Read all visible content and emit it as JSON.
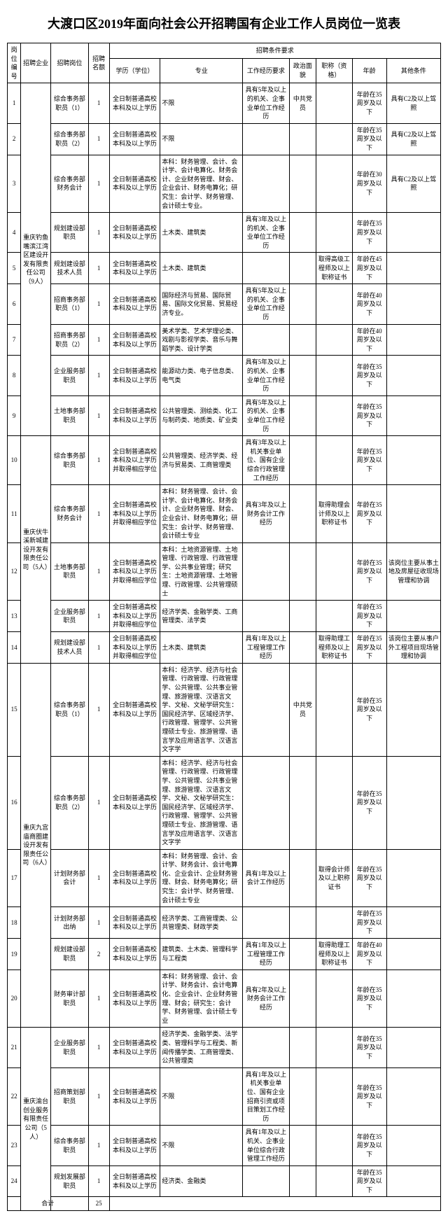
{
  "title": "大渡口区2019年面向社会公开招聘国有企业工作人员岗位一览表",
  "headers": {
    "idx": "岗位编号",
    "enterprise": "招聘企业",
    "position": "招聘岗位",
    "count": "招聘名额",
    "requirements": "招聘条件要求",
    "education": "学历（学位）",
    "major": "专业",
    "experience": "工作经历要求",
    "political": "政治面貌",
    "qualification": "职称（资格）",
    "age": "年龄",
    "other": "其他条件"
  },
  "enterprises": {
    "e1": "重庆钓鱼嘴滨江湾区建设开发有限责任公司（9人）",
    "e2": "重庆伏牛溪新城建设开发有限责任公司（5人）",
    "e3": "重庆九宫庙商圈建设开发有限责任公司（6人）",
    "e4": "重庆渝台创业服务有限责任公司（5人）"
  },
  "rows": [
    {
      "idx": "1",
      "pos": "综合事务部职员（1）",
      "num": "1",
      "edu": "全日制普通高校本科及以上学历",
      "maj": "不限",
      "exp": "具有5年及以上的机关、企事业单位工作经历",
      "pol": "中共党员",
      "qual": "",
      "age": "年龄在35周岁及以下",
      "oth": "具有C2及以上驾照"
    },
    {
      "idx": "2",
      "pos": "综合事务部职员（2）",
      "num": "1",
      "edu": "全日制普通高校本科及以上学历",
      "maj": "不限",
      "exp": "",
      "pol": "",
      "qual": "",
      "age": "年龄在35周岁及以下",
      "oth": "具有C2及以上驾照"
    },
    {
      "idx": "3",
      "pos": "综合事务部财务会计",
      "num": "1",
      "edu": "全日制普通高校本科及以上学历",
      "maj": "本科：财务管理、会计、会计学、会计电算化、财务会计、企业财务管理、财会、企业会计、财务电算化；研究生：会计学、财务管理、会计硕士专业。",
      "exp": "",
      "pol": "",
      "qual": "",
      "age": "年龄在30周岁及以下",
      "oth": "具有C2及以上驾照"
    },
    {
      "idx": "4",
      "pos": "规划建设部职员",
      "num": "1",
      "edu": "全日制普通高校本科及以上学历",
      "maj": "土木类、建筑类",
      "exp": "具有3年及以上的机关、企事业单位工作经历",
      "pol": "",
      "qual": "",
      "age": "年龄在35周岁及以下",
      "oth": ""
    },
    {
      "idx": "5",
      "pos": "规划建设部技术人员",
      "num": "1",
      "edu": "全日制普通高校本科及以上学历",
      "maj": "土木类、建筑类",
      "exp": "",
      "pol": "",
      "qual": "取得高级工程师及以上职称证书",
      "age": "年龄在45周岁及以下",
      "oth": ""
    },
    {
      "idx": "6",
      "pos": "招商事务部职员（1）",
      "num": "1",
      "edu": "全日制普通高校本科及以上学历",
      "maj": "国际经济与贸易、国际贸易、国际文化贸易、贸易经济专业。",
      "exp": "具有5年及以上的机关、企事业单位工作经历",
      "pol": "",
      "qual": "",
      "age": "年龄在40周岁及以下",
      "oth": ""
    },
    {
      "idx": "7",
      "pos": "招商事务部职员（2）",
      "num": "1",
      "edu": "全日制普通高校本科及以上学历",
      "maj": "美术学类、艺术学理论类、戏剧与影视学类、音乐与舞蹈学类、设计学类",
      "exp": "",
      "pol": "",
      "qual": "",
      "age": "年龄在40周岁及以下",
      "oth": ""
    },
    {
      "idx": "8",
      "pos": "企业服务部职员",
      "num": "1",
      "edu": "全日制普通高校本科及以上学历",
      "maj": "能源动力类、电子信息类、电气类",
      "exp": "具有5年及以上的机关、企事业单位工作经历",
      "pol": "",
      "qual": "",
      "age": "年龄在35周岁及以下",
      "oth": ""
    },
    {
      "idx": "9",
      "pos": "土地事务部职员",
      "num": "1",
      "edu": "全日制普通高校本科及以上学历",
      "maj": "公共管理类、测绘类、化工与制药类、地质类、矿业类",
      "exp": "具有5年及以上的机关、企事业单位工作经历",
      "pol": "",
      "qual": "",
      "age": "年龄在35周岁及以下",
      "oth": ""
    },
    {
      "idx": "10",
      "pos": "综合事务部职员",
      "num": "1",
      "edu": "全日制普通高校本科及以上学历并取得相应学位",
      "maj": "公共管理类、经济学类、经济与贸易类、工商管理类",
      "exp": "具有3年及以上机关事业单位、国有企业综合行政管理工作经历",
      "pol": "",
      "qual": "",
      "age": "年龄在35周岁及以下",
      "oth": ""
    },
    {
      "idx": "11",
      "pos": "综合事务部财务会计",
      "num": "1",
      "edu": "全日制普通高校本科及以上学历并取得相应学位",
      "maj": "本科：财务管理、会计、会计学、会计电算化、财务会计、企业财务管理、财会、企业会计、财务电算化；研究生：会计学、财务管理、会计硕士专业",
      "exp": "具有3年及以上财务会计工作经历",
      "pol": "",
      "qual": "取得助理会计师及以上职称证书",
      "age": "年龄在35周岁及以下",
      "oth": ""
    },
    {
      "idx": "12",
      "pos": "土地事务部职员",
      "num": "1",
      "edu": "全日制普通高校本科及以上学历并取得相应学位",
      "maj": "本科：土地资源管理、土地管理、行政管理、行政管理学、公共事业管理；研究生：土地资源管理、土地管理、行政管理、公共管理硕士",
      "exp": "",
      "pol": "",
      "qual": "",
      "age": "年龄在35周岁及以下",
      "oth": "该岗位主要从事土地及房屋征收现场管理和协调"
    },
    {
      "idx": "13",
      "pos": "企业服务部职员",
      "num": "1",
      "edu": "全日制普通高校本科及以上学历并取得相应学位",
      "maj": "经济学类、金融学类、工商管理类、法学类",
      "exp": "",
      "pol": "",
      "qual": "",
      "age": "年龄在35周岁及以下",
      "oth": ""
    },
    {
      "idx": "14",
      "pos": "规划建设部技术人员",
      "num": "1",
      "edu": "全日制普通高校本科及以上学历并取得相应学位",
      "maj": "土木类、建筑类",
      "exp": "具有1年及以上工程管理工作经历",
      "pol": "",
      "qual": "取得助理工程师及以上职称证书",
      "age": "年龄在35周岁及以下",
      "oth": "该岗位主要从事户外工程项目现场管理和协调"
    },
    {
      "idx": "15",
      "pos": "综合事务部职员（1）",
      "num": "1",
      "edu": "全日制普通高校本科及以上学历",
      "maj": "本科：经济学、经济与社会管理、行政管理、行政管理学、公共管理、公共事业管理、旅游管理、汉语言文学、文秘、文秘学研究生：国民经济学、区域经济学、行政管理、管理学、公共管理硕士专业、旅游管理、语言学及应用语言学、汉语言文字学",
      "exp": "",
      "pol": "中共党员",
      "qual": "",
      "age": "年龄在35周岁及以下",
      "oth": ""
    },
    {
      "idx": "16",
      "pos": "综合事务部职员（2）",
      "num": "1",
      "edu": "全日制普通高校本科及以上学历",
      "maj": "本科：经济学、经济与社会管理、行政管理、行政管理学、公共管理、公共事业管理、旅游管理、汉语言文学、文秘、文秘学研究生：国民经济学、区域经济学、行政管理、管理学、公共管理硕士专业、旅游管理、语言学及应用语言学、汉语言文字学",
      "exp": "",
      "pol": "",
      "qual": "",
      "age": "年龄在35周岁及以下",
      "oth": ""
    },
    {
      "idx": "17",
      "pos": "计划财务部会计",
      "num": "1",
      "edu": "全日制普通高校本科及以上学历",
      "maj": "本科：财务管理、会计、会计学、财务会计、会计电算化、企业会计、企业财务管理、财会、财务电算化；研究生：会计学、财务管理、会计硕士专业",
      "exp": "具有1年及以上会计工作经历",
      "pol": "",
      "qual": "取得会计师及以上职称证书",
      "age": "年龄在35周岁及以下",
      "oth": ""
    },
    {
      "idx": "18",
      "pos": "计划财务部出纳",
      "num": "1",
      "edu": "全日制普通高校本科及以上学历",
      "maj": "经济学类、工商管理类、公共管理类、财政学类",
      "exp": "",
      "pol": "",
      "qual": "",
      "age": "年龄在35周岁及以下",
      "oth": ""
    },
    {
      "idx": "19",
      "pos": "规划建设部职员",
      "num": "2",
      "edu": "全日制普通高校本科及以上学历",
      "maj": "建筑类、土木类、管理科学与工程类",
      "exp": "具有1年及以上工程管理工作经历",
      "pol": "",
      "qual": "取得助理工程师及以上职称证书",
      "age": "年龄在40周岁及以下",
      "oth": ""
    },
    {
      "idx": "20",
      "pos": "财务审计部职员",
      "num": "1",
      "edu": "全日制普通高校本科及以上学历",
      "maj": "本科：财务管理、会计、会计学、财务会计、会计电算化、企业会计、企业财务管理、财会；研究生：会计学、财务管理、会计硕士专业",
      "exp": "具有2年及以上财务会计工作经历",
      "pol": "",
      "qual": "",
      "age": "年龄在35周岁及以下",
      "oth": ""
    },
    {
      "idx": "21",
      "pos": "企业服务部职员",
      "num": "1",
      "edu": "全日制普通高校本科及以上学历",
      "maj": "经济学类、金融学类、法学类、管理科学与工程类、新闻传播学类、工商管理类、公共管理类",
      "exp": "",
      "pol": "",
      "qual": "",
      "age": "年龄在35周岁及以下",
      "oth": ""
    },
    {
      "idx": "22",
      "pos": "招商策划部职员",
      "num": "1",
      "edu": "全日制普通高校本科及以上学历",
      "maj": "不限",
      "exp": "具有1年及以上机关事业单位、国有企业招商引资或项目策划工作经历",
      "pol": "",
      "qual": "",
      "age": "年龄在35周岁及以下",
      "oth": ""
    },
    {
      "idx": "23",
      "pos": "综合事务部职员",
      "num": "1",
      "edu": "全日制普通高校本科及以上学历",
      "maj": "不限",
      "exp": "具有1年及以上机关、企事业单位综合行政管理工作经历",
      "pol": "",
      "qual": "",
      "age": "年龄在35周岁及以下",
      "oth": ""
    },
    {
      "idx": "24",
      "pos": "规划发展部职员",
      "num": "1",
      "edu": "全日制普通高校本科及以上学历",
      "maj": "经济类、金融类",
      "exp": "",
      "pol": "",
      "qual": "",
      "age": "年龄在35周岁及以下",
      "oth": ""
    }
  ],
  "total": {
    "label": "合计",
    "count": "25"
  }
}
